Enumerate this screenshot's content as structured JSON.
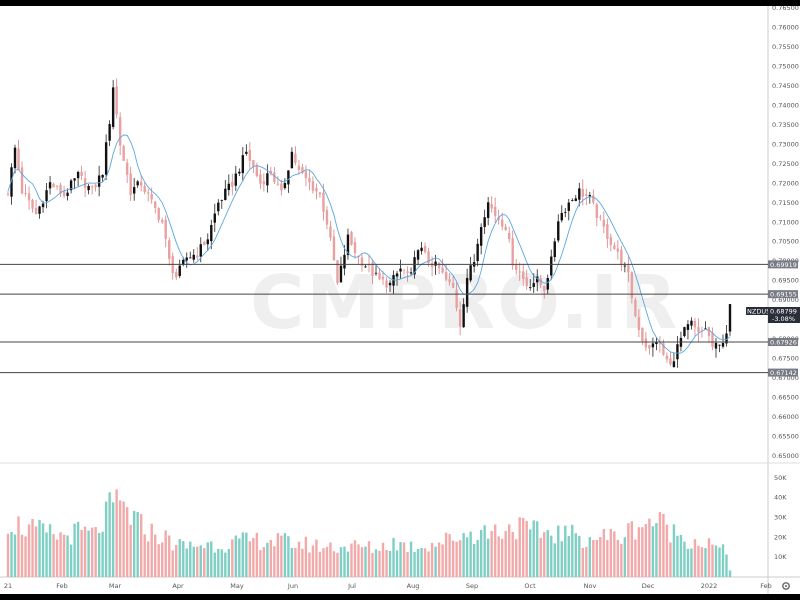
{
  "watermark": "CMPRO.IR",
  "chart_data": {
    "type": "candlestick",
    "symbol": "NZDUSD",
    "last_price": "0.68799",
    "change": "-3.08%",
    "x_labels": [
      "21",
      "Feb",
      "Mar",
      "Apr",
      "May",
      "Jun",
      "Jul",
      "Aug",
      "Sep",
      "Oct",
      "Nov",
      "Dec",
      "2022",
      "Feb"
    ],
    "y_ticks": [
      "0.76500",
      "0.76000",
      "0.75500",
      "0.75000",
      "0.74500",
      "0.74000",
      "0.73500",
      "0.73000",
      "0.72500",
      "0.72000",
      "0.71500",
      "0.71000",
      "0.70500",
      "0.70000",
      "0.69500",
      "0.69000",
      "0.68500",
      "0.68000",
      "0.67500",
      "0.67000",
      "0.66500",
      "0.66000",
      "0.65500",
      "0.65000"
    ],
    "y_range": [
      0.6495,
      0.7655
    ],
    "volume_ticks": [
      "50K",
      "40K",
      "30K",
      "20K",
      "10K"
    ],
    "volume_range": [
      0,
      55000
    ],
    "horizontal_levels": [
      {
        "value": 0.69919,
        "label": "0.69919"
      },
      {
        "value": 0.69155,
        "label": "0.69155"
      },
      {
        "value": 0.67926,
        "label": "0.67926"
      },
      {
        "value": 0.67142,
        "label": "0.67142"
      }
    ],
    "price_keypoints": [
      [
        0,
        0.718
      ],
      [
        2,
        0.729
      ],
      [
        4,
        0.718
      ],
      [
        8,
        0.712
      ],
      [
        12,
        0.72
      ],
      [
        16,
        0.717
      ],
      [
        20,
        0.722
      ],
      [
        24,
        0.718
      ],
      [
        27,
        0.723
      ],
      [
        29,
        0.736
      ],
      [
        30,
        0.745
      ],
      [
        32,
        0.73
      ],
      [
        35,
        0.718
      ],
      [
        38,
        0.72
      ],
      [
        41,
        0.715
      ],
      [
        44,
        0.71
      ],
      [
        46,
        0.7
      ],
      [
        48,
        0.696
      ],
      [
        51,
        0.701
      ],
      [
        54,
        0.702
      ],
      [
        57,
        0.706
      ],
      [
        60,
        0.715
      ],
      [
        64,
        0.72
      ],
      [
        68,
        0.728
      ],
      [
        72,
        0.72
      ],
      [
        75,
        0.723
      ],
      [
        78,
        0.717
      ],
      [
        81,
        0.728
      ],
      [
        83,
        0.723
      ],
      [
        86,
        0.72
      ],
      [
        89,
        0.717
      ],
      [
        91,
        0.71
      ],
      [
        93,
        0.7
      ],
      [
        94,
        0.694
      ],
      [
        97,
        0.706
      ],
      [
        100,
        0.701
      ],
      [
        103,
        0.698
      ],
      [
        106,
        0.695
      ],
      [
        109,
        0.694
      ],
      [
        112,
        0.698
      ],
      [
        115,
        0.696
      ],
      [
        117,
        0.704
      ],
      [
        120,
        0.7
      ],
      [
        123,
        0.698
      ],
      [
        125,
        0.695
      ],
      [
        127,
        0.693
      ],
      [
        129,
        0.684
      ],
      [
        131,
        0.696
      ],
      [
        133,
        0.7
      ],
      [
        135,
        0.71
      ],
      [
        137,
        0.715
      ],
      [
        139,
        0.712
      ],
      [
        142,
        0.709
      ],
      [
        144,
        0.7
      ],
      [
        146,
        0.697
      ],
      [
        148,
        0.694
      ],
      [
        151,
        0.695
      ],
      [
        153,
        0.693
      ],
      [
        155,
        0.7
      ],
      [
        157,
        0.711
      ],
      [
        160,
        0.715
      ],
      [
        163,
        0.718
      ],
      [
        166,
        0.716
      ],
      [
        169,
        0.71
      ],
      [
        172,
        0.705
      ],
      [
        175,
        0.7
      ],
      [
        177,
        0.696
      ],
      [
        179,
        0.686
      ],
      [
        181,
        0.68
      ],
      [
        183,
        0.677
      ],
      [
        185,
        0.68
      ],
      [
        187,
        0.676
      ],
      [
        189,
        0.673
      ],
      [
        191,
        0.678
      ],
      [
        193,
        0.682
      ],
      [
        195,
        0.684
      ],
      [
        197,
        0.681
      ],
      [
        199,
        0.683
      ],
      [
        201,
        0.678
      ],
      [
        203,
        0.678
      ],
      [
        205,
        0.682
      ],
      [
        206,
        0.688
      ]
    ],
    "volume_keypoints": [
      [
        0,
        28000
      ],
      [
        5,
        24000
      ],
      [
        10,
        22000
      ],
      [
        15,
        20000
      ],
      [
        20,
        22000
      ],
      [
        25,
        21000
      ],
      [
        29,
        33000
      ],
      [
        32,
        36000
      ],
      [
        35,
        30000
      ],
      [
        38,
        25000
      ],
      [
        41,
        22000
      ],
      [
        44,
        20000
      ],
      [
        47,
        17000
      ],
      [
        50,
        15000
      ],
      [
        55,
        16000
      ],
      [
        60,
        16000
      ],
      [
        65,
        17000
      ],
      [
        70,
        18000
      ],
      [
        75,
        18000
      ],
      [
        80,
        17000
      ],
      [
        85,
        16000
      ],
      [
        90,
        15000
      ],
      [
        95,
        15000
      ],
      [
        100,
        15000
      ],
      [
        105,
        14000
      ],
      [
        110,
        17000
      ],
      [
        115,
        15000
      ],
      [
        120,
        16000
      ],
      [
        125,
        18000
      ],
      [
        130,
        21000
      ],
      [
        135,
        22000
      ],
      [
        140,
        23000
      ],
      [
        145,
        25000
      ],
      [
        150,
        22000
      ],
      [
        155,
        22000
      ],
      [
        160,
        21000
      ],
      [
        165,
        19000
      ],
      [
        170,
        20000
      ],
      [
        175,
        20000
      ],
      [
        180,
        26000
      ],
      [
        185,
        28000
      ],
      [
        190,
        22000
      ],
      [
        195,
        18000
      ],
      [
        200,
        16000
      ],
      [
        205,
        12000
      ],
      [
        206,
        4000
      ]
    ]
  }
}
